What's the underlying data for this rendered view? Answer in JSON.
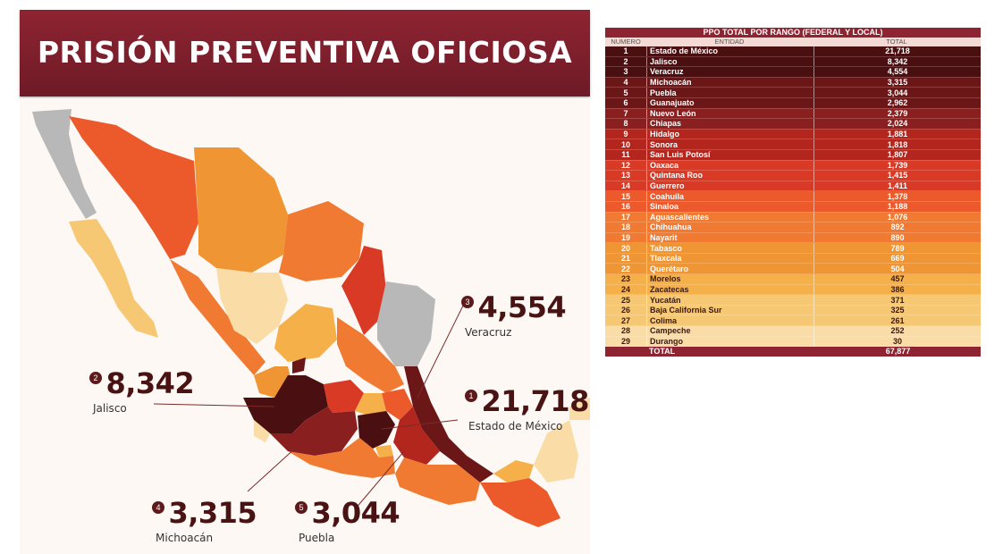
{
  "banner": {
    "title": "PRISIÓN PREVENTIVA OFICIOSA"
  },
  "callouts": [
    {
      "rank": "1",
      "value": "21,718",
      "name": "Estado de México"
    },
    {
      "rank": "2",
      "value": "8,342",
      "name": "Jalisco"
    },
    {
      "rank": "3",
      "value": "4,554",
      "name": "Veracruz"
    },
    {
      "rank": "4",
      "value": "3,315",
      "name": "Michoacán"
    },
    {
      "rank": "5",
      "value": "3,044",
      "name": "Puebla"
    }
  ],
  "table": {
    "title": "PPO TOTAL POR RANGO (FEDERAL Y LOCAL)",
    "headers": {
      "rank": "NUMERO",
      "state": "ENTIDAD",
      "total": "TOTAL"
    },
    "total_label": "TOTAL",
    "total_value": "67,877"
  },
  "colors": {
    "banner": "#8e2431",
    "scale": [
      "#4a0f10",
      "#6b1718",
      "#8a1f1f",
      "#b3261e",
      "#d93a25",
      "#ec5a2c",
      "#f07a32",
      "#f09533",
      "#f5b04a",
      "#f7c873",
      "#f9dca6"
    ],
    "no_data": "#b8b8b8"
  },
  "chart_data": {
    "type": "table",
    "title": "PPO TOTAL POR RANGO (FEDERAL Y LOCAL)",
    "columns": [
      "NUMERO",
      "ENTIDAD",
      "TOTAL"
    ],
    "rows": [
      {
        "rank": 1,
        "state": "Estado de México",
        "total": "21,718",
        "value": 21718
      },
      {
        "rank": 2,
        "state": "Jalisco",
        "total": "8,342",
        "value": 8342
      },
      {
        "rank": 3,
        "state": "Veracruz",
        "total": "4,554",
        "value": 4554
      },
      {
        "rank": 4,
        "state": "Michoacán",
        "total": "3,315",
        "value": 3315
      },
      {
        "rank": 5,
        "state": "Puebla",
        "total": "3,044",
        "value": 3044
      },
      {
        "rank": 6,
        "state": "Guanajuato",
        "total": "2,962",
        "value": 2962
      },
      {
        "rank": 7,
        "state": "Nuevo León",
        "total": "2,379",
        "value": 2379
      },
      {
        "rank": 8,
        "state": "Chiapas",
        "total": "2,024",
        "value": 2024
      },
      {
        "rank": 9,
        "state": "Hidalgo",
        "total": "1,881",
        "value": 1881
      },
      {
        "rank": 10,
        "state": "Sonora",
        "total": "1,818",
        "value": 1818
      },
      {
        "rank": 11,
        "state": "San Luis Potosí",
        "total": "1,807",
        "value": 1807
      },
      {
        "rank": 12,
        "state": "Oaxaca",
        "total": "1,739",
        "value": 1739
      },
      {
        "rank": 13,
        "state": "Quintana Roo",
        "total": "1,415",
        "value": 1415
      },
      {
        "rank": 14,
        "state": "Guerrero",
        "total": "1,411",
        "value": 1411
      },
      {
        "rank": 15,
        "state": "Coahuila",
        "total": "1,378",
        "value": 1378
      },
      {
        "rank": 16,
        "state": "Sinaloa",
        "total": "1,188",
        "value": 1188
      },
      {
        "rank": 17,
        "state": "Aguascalientes",
        "total": "1,076",
        "value": 1076
      },
      {
        "rank": 18,
        "state": "Chihuahua",
        "total": "892",
        "value": 892
      },
      {
        "rank": 19,
        "state": "Nayarit",
        "total": "890",
        "value": 890
      },
      {
        "rank": 20,
        "state": "Tabasco",
        "total": "789",
        "value": 789
      },
      {
        "rank": 21,
        "state": "Tlaxcala",
        "total": "669",
        "value": 669
      },
      {
        "rank": 22,
        "state": "Querétaro",
        "total": "504",
        "value": 504
      },
      {
        "rank": 23,
        "state": "Morelos",
        "total": "457",
        "value": 457
      },
      {
        "rank": 24,
        "state": "Zacatecas",
        "total": "386",
        "value": 386
      },
      {
        "rank": 25,
        "state": "Yucatán",
        "total": "371",
        "value": 371
      },
      {
        "rank": 26,
        "state": "Baja California Sur",
        "total": "325",
        "value": 325
      },
      {
        "rank": 27,
        "state": "Colima",
        "total": "261",
        "value": 261
      },
      {
        "rank": 28,
        "state": "Campeche",
        "total": "252",
        "value": 252
      },
      {
        "rank": 29,
        "state": "Durango",
        "total": "30",
        "value": 30
      }
    ],
    "total": 67877
  }
}
